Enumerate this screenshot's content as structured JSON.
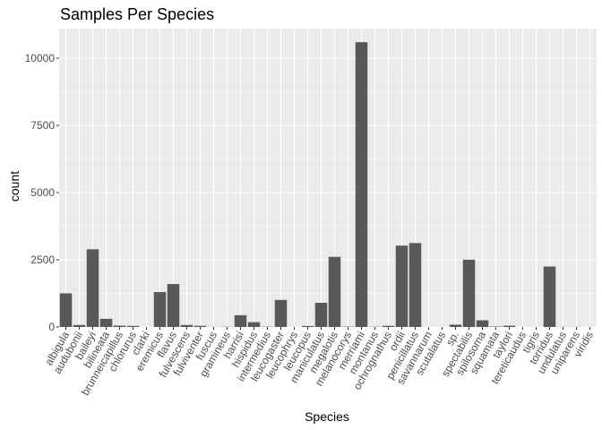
{
  "chart_data": {
    "type": "bar",
    "title": "Samples Per Species",
    "xlabel": "Species",
    "ylabel": "count",
    "categories": [
      "albigula",
      "audubonii",
      "baileyi",
      "bilineata",
      "brunneicapillus",
      "chlorurus",
      "clarki",
      "eremicus",
      "flavus",
      "fulvescens",
      "fulviventer",
      "fuscus",
      "gramineus",
      "harrisi",
      "hispidus",
      "intermedius",
      "leucogaster",
      "leucophrys",
      "leucopus",
      "maniculatus",
      "megalotis",
      "melanocorys",
      "merriami",
      "montanus",
      "ochrognathus",
      "ordii",
      "penicillatus",
      "savannarum",
      "scutalatus",
      "sp.",
      "spectabilis",
      "spilosoma",
      "squamata",
      "taylori",
      "tereticaudus",
      "tigris",
      "torridus",
      "undulatus",
      "uniparens",
      "viridis"
    ],
    "values": [
      1252,
      75,
      2891,
      303,
      50,
      39,
      1,
      1299,
      1597,
      75,
      43,
      5,
      8,
      437,
      179,
      9,
      1006,
      2,
      36,
      899,
      2609,
      13,
      10596,
      8,
      43,
      3027,
      3123,
      2,
      1,
      86,
      2504,
      248,
      16,
      46,
      1,
      1,
      2249,
      5,
      5,
      1
    ],
    "ylim": [
      0,
      11100
    ],
    "yticks": [
      0,
      2500,
      5000,
      7500,
      10000
    ],
    "ytick_labels": [
      "0",
      "2500",
      "5000",
      "7500",
      "10000"
    ],
    "grid": true,
    "colors": {
      "panel": "#ebebeb",
      "grid_major": "#ffffff",
      "bar": "#595959",
      "tick_text": "#4d4d4d",
      "tick_mark": "#333333"
    }
  }
}
